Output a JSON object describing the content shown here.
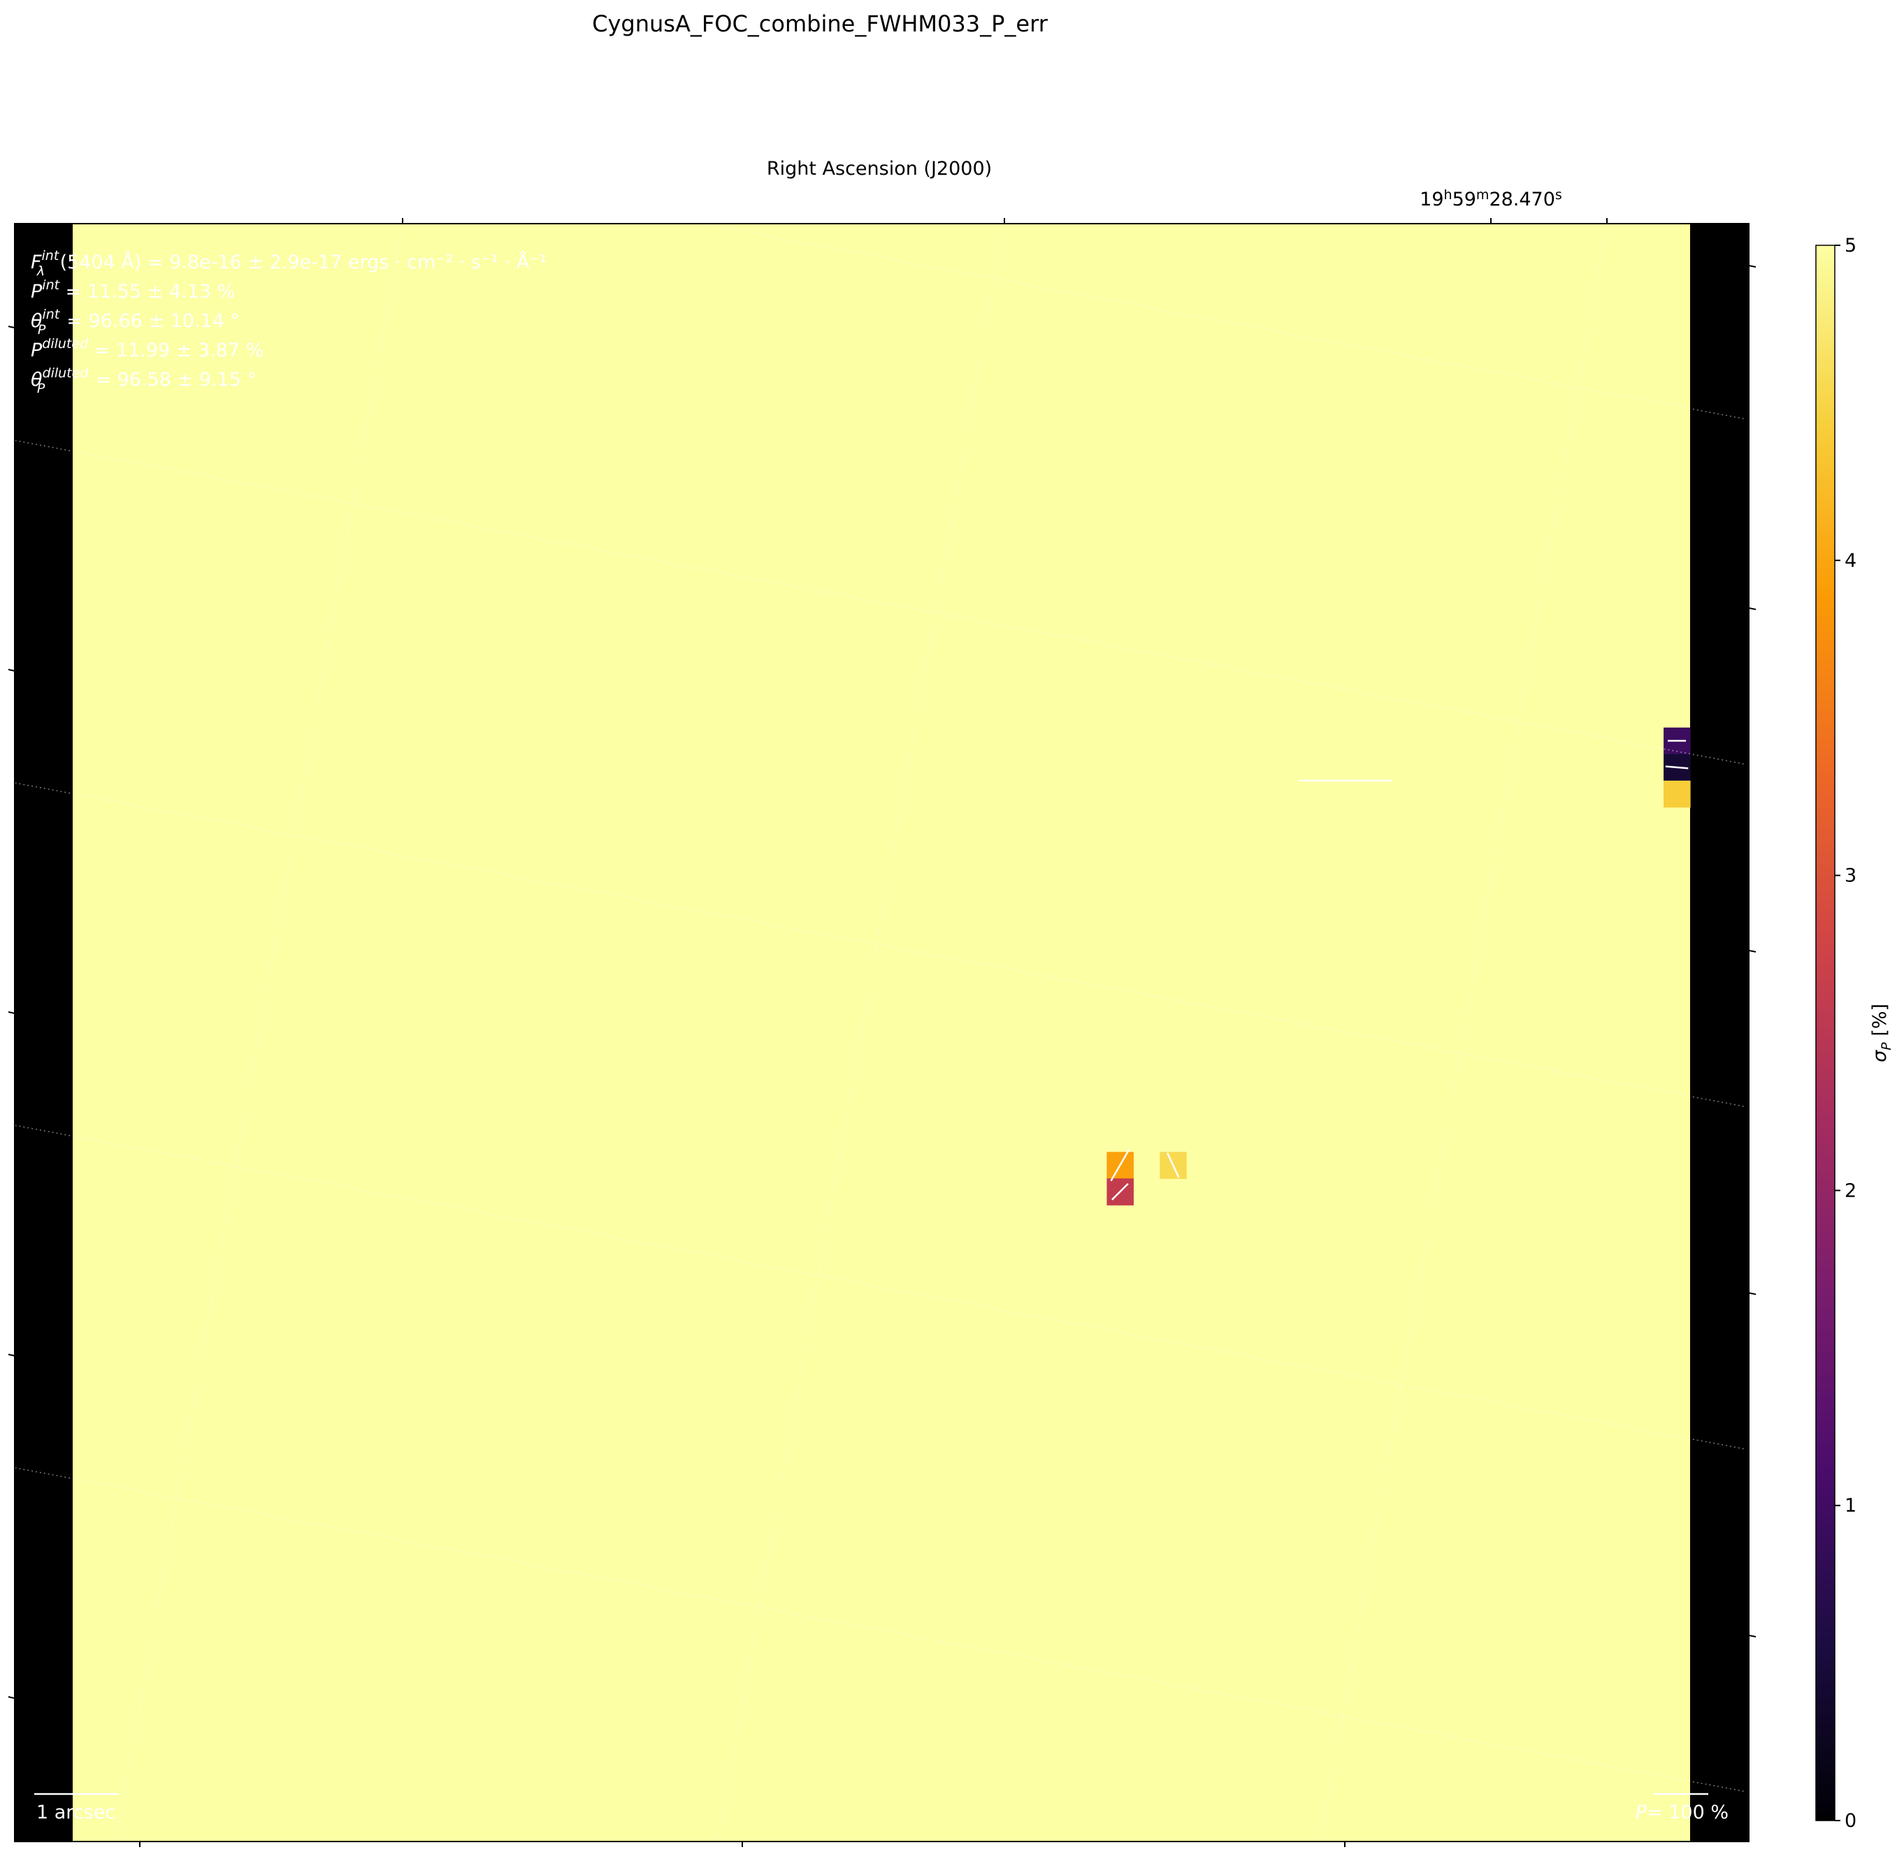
{
  "figure": {
    "title": "CygnusA_FOC_combine_FWHM033_P_err",
    "x_axis_label": "Right Ascension (J2000)",
    "ra_tick_label": "19h59m28.470s",
    "ra_tick_parts": [
      "19",
      "h",
      "59",
      "m",
      "28.470",
      "s"
    ]
  },
  "info_lines": [
    {
      "symbol": "F",
      "sup": "int",
      "sub": "λ",
      "text": "(5404 Å) = 9.8e-16 ± 2.9e-17 ergs · cm⁻² · s⁻¹ · Å⁻¹"
    },
    {
      "symbol": "P",
      "sup": "int",
      "sub": "",
      "text": " = 11.55 ± 4.13 %"
    },
    {
      "symbol": "θ",
      "sup": "int",
      "sub": "P",
      "text": " = 96.66 ± 10.14 °"
    },
    {
      "symbol": "P",
      "sup": "diluted",
      "sub": "",
      "text": " = 11.99 ± 3.87 %"
    },
    {
      "symbol": "θ",
      "sup": "diluted",
      "sub": "P",
      "text": " = 96.58 ± 9.15 °"
    }
  ],
  "scalebar": {
    "label": "1 arcsec"
  },
  "pol_scale": {
    "prefix": "P",
    "label": "= 100 %"
  },
  "colorbar": {
    "label": "σP [%]",
    "label_main": "σ",
    "label_sub": "P",
    "label_rest": " [%]",
    "ticks": [
      "0",
      "1",
      "2",
      "3",
      "4",
      "5"
    ],
    "cmap": [
      "#000004",
      "#1b0c41",
      "#4a0c6b",
      "#781c6d",
      "#a52c60",
      "#cf4446",
      "#ed6925",
      "#fb9b06",
      "#f7d13d",
      "#fcffa4"
    ]
  },
  "chart_data": {
    "type": "heatmap",
    "title": "CygnusA_FOC_combine_FWHM033_P_err",
    "xlabel": "Right Ascension (J2000)",
    "ylabel": "",
    "colorbar_label": "σP [%]",
    "vmin": 0,
    "vmax": 5,
    "background_value": 5,
    "grid_shape": [
      61,
      61
    ],
    "cells": [
      {
        "col": 60,
        "row": 19,
        "value": 0.95
      },
      {
        "col": 60,
        "row": 20,
        "value": 0.45
      },
      {
        "col": 60,
        "row": 21,
        "value": 4.4
      },
      {
        "col": 39,
        "row": 35,
        "value": 3.95
      },
      {
        "col": 41,
        "row": 35,
        "value": 4.55
      },
      {
        "col": 39,
        "row": 36,
        "value": 2.6
      }
    ],
    "vectors": [
      {
        "col": 60,
        "row": 19,
        "p": 20,
        "angle_deg": 0
      },
      {
        "col": 60,
        "row": 20,
        "p": 25,
        "angle_deg": 5
      },
      {
        "col": 39,
        "row": 35,
        "p": 40,
        "angle_deg": 120
      },
      {
        "col": 41,
        "row": 35,
        "p": 30,
        "angle_deg": 65
      },
      {
        "col": 39,
        "row": 36,
        "p": 25,
        "angle_deg": 135
      }
    ],
    "standalone_vector": {
      "col": 47.5,
      "row": 20.5,
      "p": 330,
      "angle_deg": 0
    },
    "integrated": {
      "P_percent": 11.55,
      "P_err": 4.13,
      "theta_deg": 96.66,
      "theta_err": 10.14
    },
    "diluted": {
      "P_percent": 11.99,
      "P_err": 3.87,
      "theta_deg": 96.58,
      "theta_err": 9.15
    }
  }
}
